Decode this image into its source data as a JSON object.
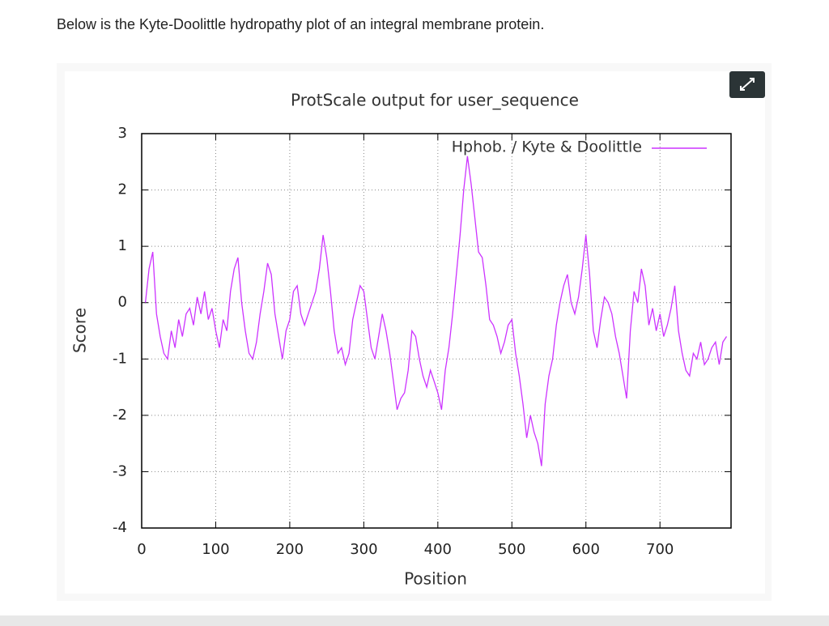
{
  "question": "Below is the Kyte-Doolittle hydropathy plot of an integral membrane protein.",
  "chart_data": {
    "type": "line",
    "title": "ProtScale output for user_sequence",
    "x_label": "Position",
    "y_label": "Score",
    "xlim": [
      0,
      796
    ],
    "ylim": [
      -4,
      3
    ],
    "xticks": [
      0,
      100,
      200,
      300,
      400,
      500,
      600,
      700
    ],
    "yticks": [
      -4,
      -3,
      -2,
      -1,
      0,
      1,
      2,
      3
    ],
    "grid": true,
    "legend": "top-right",
    "x": [
      5,
      10,
      15,
      20,
      25,
      30,
      35,
      40,
      45,
      50,
      55,
      60,
      65,
      70,
      75,
      80,
      85,
      90,
      95,
      100,
      105,
      110,
      115,
      120,
      125,
      130,
      135,
      140,
      145,
      150,
      155,
      160,
      165,
      170,
      175,
      180,
      185,
      190,
      195,
      200,
      205,
      210,
      215,
      220,
      225,
      230,
      235,
      240,
      245,
      250,
      255,
      260,
      265,
      270,
      275,
      280,
      285,
      290,
      295,
      300,
      305,
      310,
      315,
      320,
      325,
      330,
      335,
      340,
      345,
      350,
      355,
      360,
      365,
      370,
      375,
      380,
      385,
      390,
      395,
      400,
      405,
      410,
      415,
      420,
      425,
      430,
      435,
      440,
      445,
      450,
      455,
      460,
      465,
      470,
      475,
      480,
      485,
      490,
      495,
      500,
      505,
      510,
      515,
      520,
      525,
      530,
      535,
      540,
      545,
      550,
      555,
      560,
      565,
      570,
      575,
      580,
      585,
      590,
      595,
      600,
      605,
      610,
      615,
      620,
      625,
      630,
      635,
      640,
      645,
      650,
      655,
      660,
      665,
      670,
      675,
      680,
      685,
      690,
      695,
      700,
      705,
      710,
      715,
      720,
      725,
      730,
      735,
      740,
      745,
      750,
      755,
      760,
      765,
      770,
      775,
      780,
      785,
      790
    ],
    "series": [
      {
        "name": "Hphob. / Kyte & Doolittle",
        "color": "#cc33ff",
        "values": [
          0.0,
          0.6,
          0.9,
          -0.2,
          -0.6,
          -0.9,
          -1.0,
          -0.5,
          -0.8,
          -0.3,
          -0.6,
          -0.2,
          -0.1,
          -0.4,
          0.1,
          -0.2,
          0.2,
          -0.3,
          -0.1,
          -0.5,
          -0.8,
          -0.3,
          -0.5,
          0.2,
          0.6,
          0.8,
          0.0,
          -0.5,
          -0.9,
          -1.0,
          -0.7,
          -0.2,
          0.2,
          0.7,
          0.5,
          -0.2,
          -0.6,
          -1.0,
          -0.5,
          -0.3,
          0.2,
          0.3,
          -0.2,
          -0.4,
          -0.2,
          0.0,
          0.2,
          0.6,
          1.2,
          0.8,
          0.2,
          -0.5,
          -0.9,
          -0.8,
          -1.1,
          -0.9,
          -0.3,
          0.0,
          0.3,
          0.2,
          -0.3,
          -0.8,
          -1.0,
          -0.6,
          -0.2,
          -0.5,
          -0.9,
          -1.4,
          -1.9,
          -1.7,
          -1.6,
          -1.2,
          -0.5,
          -0.6,
          -1.0,
          -1.3,
          -1.5,
          -1.2,
          -1.4,
          -1.6,
          -1.9,
          -1.2,
          -0.8,
          -0.2,
          0.5,
          1.2,
          2.0,
          2.6,
          2.1,
          1.5,
          0.9,
          0.8,
          0.3,
          -0.3,
          -0.4,
          -0.6,
          -0.9,
          -0.7,
          -0.4,
          -0.3,
          -0.9,
          -1.3,
          -1.8,
          -2.4,
          -2.0,
          -2.3,
          -2.5,
          -2.9,
          -1.8,
          -1.3,
          -1.0,
          -0.4,
          0.0,
          0.3,
          0.5,
          0.0,
          -0.2,
          0.1,
          0.6,
          1.2,
          0.5,
          -0.5,
          -0.8,
          -0.3,
          0.1,
          0.0,
          -0.2,
          -0.6,
          -0.9,
          -1.3,
          -1.7,
          -0.5,
          0.2,
          0.0,
          0.6,
          0.3,
          -0.4,
          -0.1,
          -0.5,
          -0.2,
          -0.6,
          -0.4,
          -0.1,
          0.3,
          -0.5,
          -0.9,
          -1.2,
          -1.3,
          -0.9,
          -1.0,
          -0.7,
          -1.1,
          -1.0,
          -0.8,
          -0.7,
          -1.1,
          -0.7,
          -0.6
        ]
      }
    ]
  }
}
